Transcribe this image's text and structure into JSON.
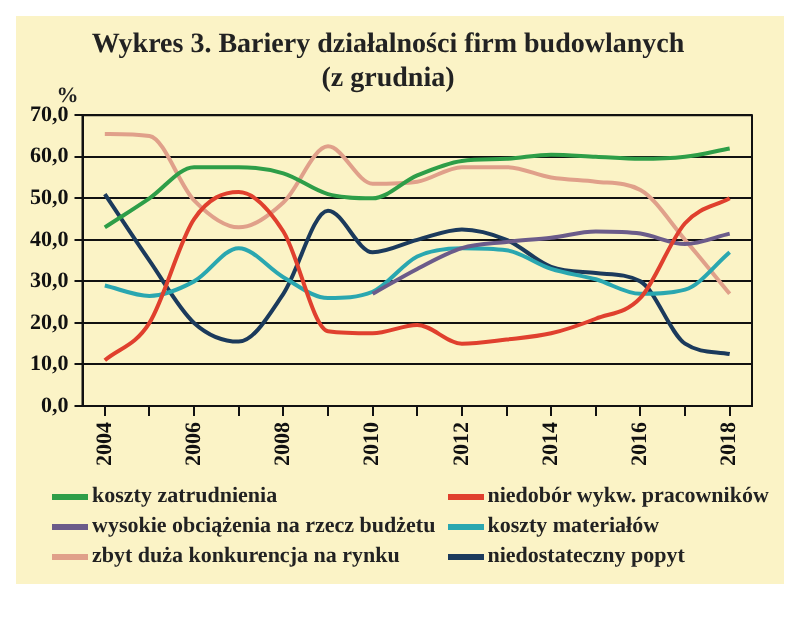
{
  "chart_data": {
    "type": "line",
    "title": "Wykres 3. Bariery działalności firm budowlanych",
    "subtitle": "(z grudnia)",
    "ylabel": "%",
    "x": [
      2004,
      2005,
      2006,
      2007,
      2008,
      2009,
      2010,
      2011,
      2012,
      2013,
      2014,
      2015,
      2016,
      2017,
      2018
    ],
    "series": [
      {
        "name": "koszty zatrudnienia",
        "color": "#2e9e48",
        "values": [
          43,
          50,
          57.5,
          57.5,
          56,
          51,
          50,
          55.5,
          59,
          59.5,
          60.5,
          60,
          59.5,
          60,
          62
        ]
      },
      {
        "name": "niedobór wykw. pracowników",
        "color": "#e0402e",
        "values": [
          11,
          20,
          45,
          51.5,
          42,
          18,
          17.5,
          19.5,
          15,
          16,
          17.5,
          21,
          26,
          44,
          50
        ]
      },
      {
        "name": "wysokie obciążenia na rzecz budżetu",
        "color": "#6b5b8a",
        "values": [
          null,
          null,
          null,
          null,
          null,
          null,
          27,
          33,
          38,
          39.5,
          40.5,
          42,
          41.5,
          39,
          41.5
        ]
      },
      {
        "name": "koszty materiałów",
        "color": "#2aa7b0",
        "values": [
          29,
          26.5,
          30,
          38,
          31,
          26,
          27.5,
          36,
          38,
          37.5,
          33,
          30.5,
          27,
          28,
          37
        ]
      },
      {
        "name": "zbyt duża konkurencja na rynku",
        "color": "#e0a08a",
        "values": [
          65.5,
          65,
          49.5,
          43,
          49,
          62.5,
          53.5,
          54,
          57.5,
          57.5,
          55,
          54,
          52,
          40,
          27
        ]
      },
      {
        "name": "niedostateczny popyt",
        "color": "#1b3a5c",
        "values": [
          51,
          35,
          20,
          15.5,
          27,
          47,
          37,
          40,
          42.5,
          40,
          33.5,
          32,
          30,
          15,
          12.5
        ]
      }
    ],
    "xlim": [
      2003.5,
      2018.5
    ],
    "xticks": [
      2004,
      {
        "value": 2005,
        "label": null
      },
      2006,
      {
        "value": 2007,
        "label": null
      },
      2008,
      {
        "value": 2009,
        "label": null
      },
      2010,
      {
        "value": 2011,
        "label": null
      },
      2012,
      {
        "value": 2013,
        "label": null
      },
      2014,
      {
        "value": 2015,
        "label": null
      },
      2016,
      {
        "value": 2017,
        "label": null
      },
      2018
    ],
    "ylim": [
      0,
      70
    ],
    "yticks": [
      {
        "value": 0,
        "label": "0,0"
      },
      {
        "value": 10,
        "label": "10,0"
      },
      {
        "value": 20,
        "label": "20,0"
      },
      {
        "value": 30,
        "label": "30,0"
      },
      {
        "value": 40,
        "label": "40,0"
      },
      {
        "value": 50,
        "label": "50,0"
      },
      {
        "value": 60,
        "label": "60,0"
      },
      {
        "value": 70,
        "label": "70,0"
      }
    ],
    "grid": "y",
    "legend": "bottom",
    "marker": "none",
    "line_style": "solid"
  }
}
